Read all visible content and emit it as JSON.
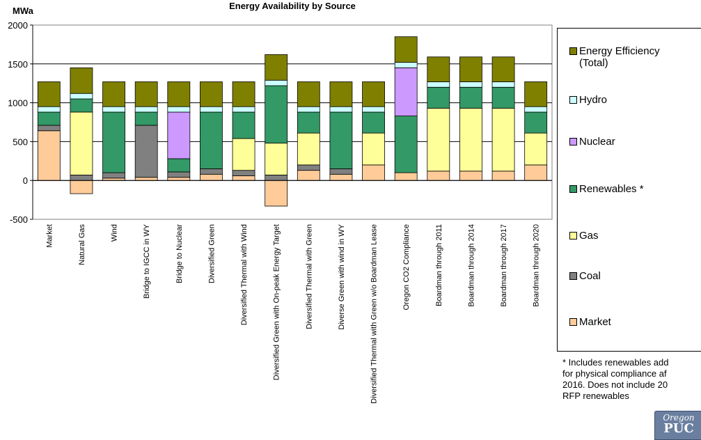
{
  "chart_data": {
    "type": "bar",
    "stacked": true,
    "title": "Energy Availability by Source",
    "ylabel": "MWa",
    "ylim": [
      -500,
      2000
    ],
    "yticks": [
      -500,
      0,
      500,
      1000,
      1500,
      2000
    ],
    "grid": true,
    "legend_position": "right",
    "categories": [
      "Market",
      "Natural Gas",
      "Wind",
      "Bridge to IGCC in WY",
      "Bridge to Nuclear",
      "Diversified Green",
      "Diversified Thermal with Wind",
      "Diversified Green with On-peak Energy Target",
      "Diversified Thermal with Green",
      "Diverse Green with wind in WY",
      "Diversified Thermal with Green w/o Boardman Lease",
      "Oregon CO2 Compliance",
      "Boardman through 2011",
      "Boardman through 2014",
      "Boardman through 2017",
      "Boardman through 2020"
    ],
    "series": [
      {
        "name": "Market",
        "color": "#ffcc99",
        "values": [
          640,
          -170,
          30,
          40,
          40,
          80,
          60,
          -330,
          130,
          80,
          200,
          100,
          120,
          120,
          120,
          200
        ]
      },
      {
        "name": "Coal",
        "color": "#808080",
        "values": [
          70,
          70,
          70,
          670,
          70,
          70,
          70,
          70,
          70,
          70,
          0,
          0,
          0,
          0,
          0,
          0
        ]
      },
      {
        "name": "Gas",
        "color": "#ffff99",
        "values": [
          0,
          810,
          0,
          0,
          0,
          0,
          410,
          410,
          410,
          0,
          410,
          0,
          810,
          810,
          810,
          410
        ]
      },
      {
        "name": "Renewables *",
        "color": "#339966",
        "values": [
          170,
          170,
          780,
          170,
          170,
          730,
          340,
          740,
          270,
          730,
          270,
          730,
          270,
          270,
          270,
          270
        ]
      },
      {
        "name": "Nuclear",
        "color": "#cc99ff",
        "values": [
          0,
          0,
          0,
          0,
          600,
          0,
          0,
          0,
          0,
          0,
          0,
          620,
          0,
          0,
          0,
          0
        ]
      },
      {
        "name": "Hydro",
        "color": "#ccffff",
        "values": [
          70,
          70,
          70,
          70,
          70,
          70,
          70,
          70,
          70,
          70,
          70,
          70,
          70,
          70,
          70,
          70
        ]
      },
      {
        "name": "Energy Efficiency (Total)",
        "color": "#808000",
        "values": [
          320,
          330,
          320,
          320,
          320,
          320,
          320,
          330,
          320,
          320,
          320,
          330,
          320,
          320,
          320,
          320
        ]
      }
    ],
    "legend": [
      {
        "label": "Energy Efficiency\n(Total)",
        "color": "#808000"
      },
      {
        "label": "Hydro",
        "color": "#ccffff"
      },
      {
        "label": "Nuclear",
        "color": "#cc99ff"
      },
      {
        "label": "Renewables *",
        "color": "#339966"
      },
      {
        "label": "Gas",
        "color": "#ffff99"
      },
      {
        "label": "Coal",
        "color": "#808080"
      },
      {
        "label": "Market",
        "color": "#ffcc99"
      }
    ]
  },
  "footnote": {
    "lines": [
      "* Includes renewables add",
      "for physical compliance af",
      "2016. Does not include 20",
      "RFP renewables"
    ]
  },
  "logo": {
    "line1": "Oregon",
    "line2": "PUC"
  }
}
